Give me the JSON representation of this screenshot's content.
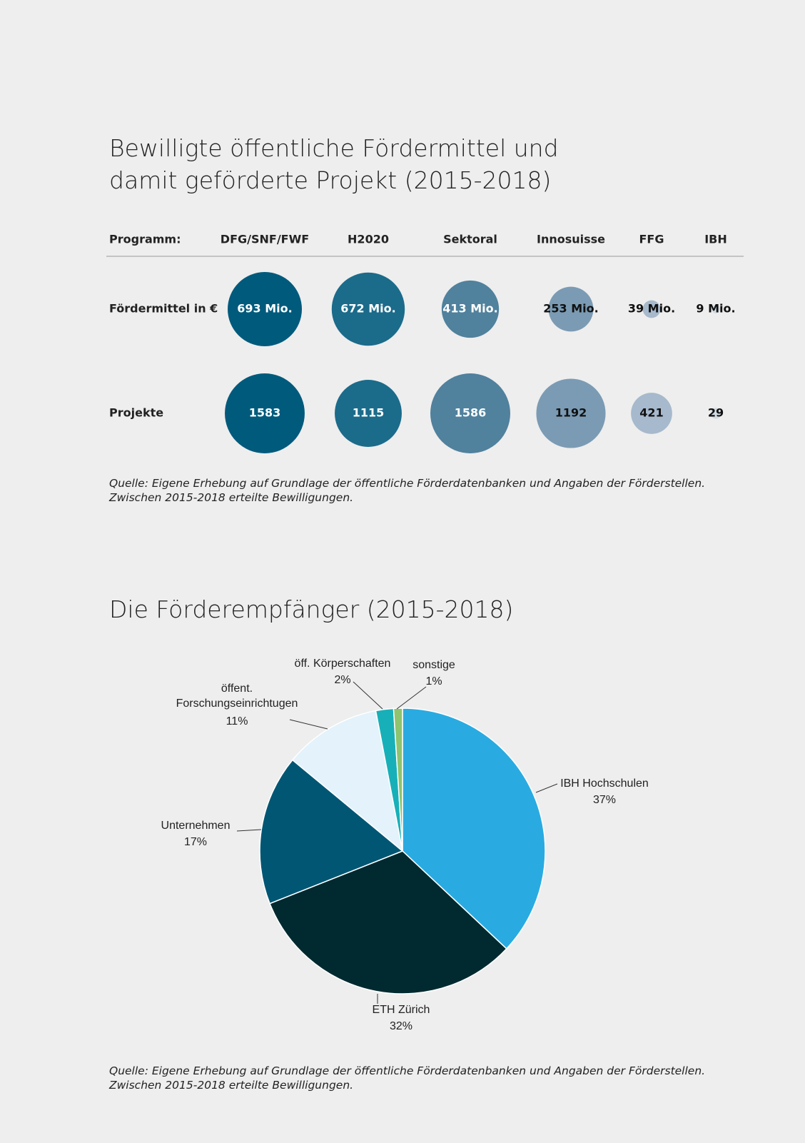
{
  "chart_data": [
    {
      "type": "bubble",
      "title": "Bewilligte öffentliche Fördermittel und\ndamit geförderte Projekt (2015-2018)",
      "category_label": "Programm:",
      "categories": [
        "DFG/SNF/FWF",
        "H2020",
        "Sektoral",
        "Innosuisse",
        "FFG",
        "IBH"
      ],
      "colors": [
        "#005a7c",
        "#1b6b8b",
        "#50819d",
        "#7b9bb4",
        "#a7b9cc",
        "#d2dbe3"
      ],
      "series": [
        {
          "name": "Fördermittel in €",
          "values": [
            693,
            672,
            413,
            253,
            39,
            9
          ],
          "value_labels": [
            "693 Mio.",
            "672 Mio.",
            "413 Mio.",
            "253 Mio.",
            "39 Mio.",
            "9 Mio."
          ],
          "label_colors": [
            "#ffffff",
            "#ffffff",
            "#ffffff",
            "#111111",
            "#111111",
            "#111111"
          ]
        },
        {
          "name": "Projekte",
          "values": [
            1583,
            1115,
            1586,
            1192,
            421,
            29
          ],
          "label_colors": [
            "#ffffff",
            "#ffffff",
            "#ffffff",
            "#111111",
            "#111111",
            "#111111"
          ]
        }
      ],
      "note": "Quelle: Eigene Erhebung auf Grundlage der öffentliche Förderdatenbanken und Angaben der Förderstellen.\nZwischen 2015-2018 erteilte Bewilligungen."
    },
    {
      "type": "pie",
      "title": "Die Förderempfänger (2015-2018)",
      "categories": [
        "IBH Hochschulen",
        "ETH Zürich",
        "Unternehmen",
        "öffent.\nForschungseinrichtugen",
        "öff. Körperschaften",
        "sonstige"
      ],
      "values": [
        37,
        32,
        17,
        11,
        2,
        1
      ],
      "value_labels": [
        "37%",
        "32%",
        "17%",
        "11%",
        "2%",
        "1%"
      ],
      "colors": [
        "#29abe2",
        "#002a30",
        "#005673",
        "#e3f2fb",
        "#17b0b9",
        "#8ec36f"
      ],
      "note": "Quelle: Eigene Erhebung auf Grundlage der öffentliche Förderdatenbanken und Angaben der Förderstellen.\nZwischen 2015-2018 erteilte Bewilligungen."
    }
  ]
}
